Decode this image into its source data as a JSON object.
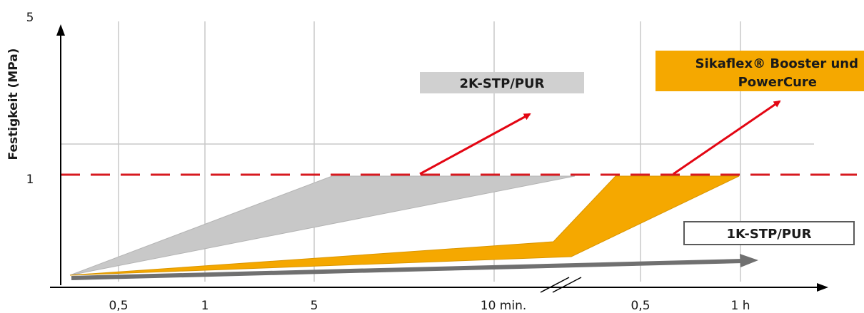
{
  "chart_data": {
    "type": "area",
    "ylabel": "Festigkeit (MPa)",
    "y_ticks": [
      "5",
      "1"
    ],
    "x_ticks": [
      "0,5",
      "1",
      "5",
      "10 min.",
      "0,5",
      "1 h"
    ],
    "reference_value": 1,
    "series": [
      {
        "name": "2K-STP/PUR",
        "color": "#c8c8c8"
      },
      {
        "name": "Sikaflex® Booster und PowerCure",
        "label_lines": [
          "Sikaflex® Booster und",
          "PowerCure"
        ],
        "color": "#f5a800"
      },
      {
        "name": "1K-STP/PUR",
        "color": "#6e6e6e"
      }
    ],
    "colors": {
      "reference_line": "#d7191f",
      "arrows": "#e30613",
      "grid": "#c8c8c8",
      "axis": "#000000"
    }
  }
}
